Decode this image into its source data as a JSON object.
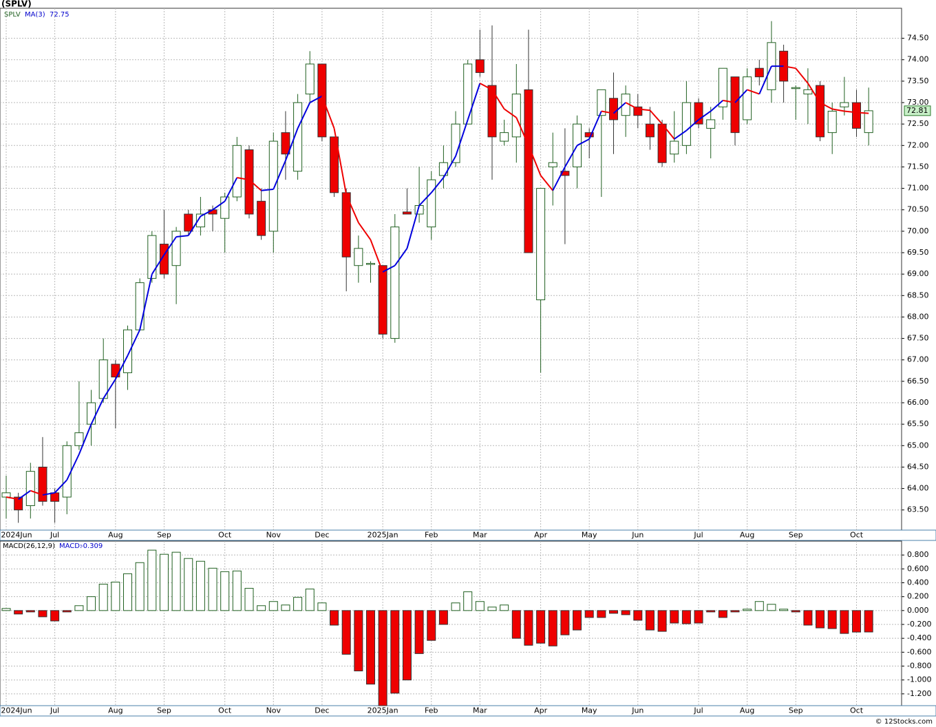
{
  "chart_data": [
    {
      "type": "candlestick",
      "title": "(SPLV)",
      "symbol": "SPLV",
      "categories": [
        "2024Jun",
        null,
        null,
        null,
        "Jul",
        null,
        null,
        null,
        null,
        "Aug",
        null,
        null,
        null,
        "Sep",
        null,
        null,
        null,
        null,
        "Oct",
        null,
        null,
        null,
        "Nov",
        null,
        null,
        null,
        "Dec",
        null,
        null,
        null,
        null,
        "2025Jan",
        null,
        null,
        null,
        "Feb",
        null,
        null,
        null,
        "Mar",
        null,
        null,
        null,
        null,
        "Apr",
        null,
        null,
        null,
        "May",
        null,
        null,
        null,
        "Jun",
        null,
        null,
        null,
        null,
        "Jul",
        null,
        null,
        null,
        "Aug",
        null,
        null,
        null,
        "Sep",
        null,
        null,
        null,
        null,
        "Oct",
        null
      ],
      "open": [
        63.8,
        63.8,
        63.6,
        64.5,
        63.9,
        63.8,
        65.0,
        65.5,
        66.1,
        66.9,
        66.7,
        67.7,
        68.9,
        69.7,
        69.2,
        70.4,
        70.1,
        70.5,
        70.3,
        70.8,
        71.9,
        70.7,
        70.0,
        72.3,
        71.4,
        73.2,
        73.9,
        72.2,
        70.9,
        69.2,
        69.25,
        69.2,
        67.5,
        70.45,
        70.4,
        70.1,
        71.3,
        71.6,
        72.5,
        74.0,
        73.4,
        72.1,
        72.2,
        73.3,
        68.4,
        71.5,
        71.4,
        71.5,
        72.3,
        72.7,
        73.1,
        72.7,
        72.9,
        72.5,
        72.5,
        71.8,
        72.0,
        73.0,
        72.4,
        72.9,
        73.6,
        72.6,
        73.8,
        73.3,
        74.2,
        73.35,
        73.2,
        73.4,
        72.3,
        72.9,
        73.0,
        72.3
      ],
      "high": [
        64.3,
        63.9,
        64.6,
        65.2,
        64.0,
        65.1,
        66.5,
        66.3,
        67.5,
        67.0,
        67.8,
        68.9,
        70.0,
        70.5,
        70.1,
        70.5,
        70.8,
        70.6,
        70.9,
        72.2,
        72.0,
        71.0,
        72.3,
        72.8,
        73.2,
        74.2,
        73.9,
        72.2,
        71.0,
        69.9,
        69.3,
        69.2,
        70.4,
        71.0,
        71.5,
        71.4,
        72.0,
        72.8,
        74.0,
        74.7,
        74.8,
        72.6,
        73.9,
        74.7,
        71.0,
        72.3,
        72.4,
        72.7,
        72.4,
        73.3,
        73.7,
        73.4,
        73.2,
        72.9,
        72.6,
        72.8,
        73.5,
        73.1,
        72.9,
        73.8,
        73.6,
        73.8,
        74.0,
        74.9,
        74.35,
        73.4,
        73.8,
        73.5,
        73.0,
        73.6,
        73.3,
        73.35
      ],
      "low": [
        63.3,
        63.2,
        63.3,
        63.6,
        63.2,
        63.4,
        64.9,
        65.0,
        66.0,
        65.4,
        66.3,
        67.7,
        68.8,
        68.9,
        68.3,
        69.9,
        69.9,
        70.0,
        69.5,
        70.7,
        70.3,
        69.8,
        69.5,
        71.2,
        71.2,
        73.0,
        72.1,
        70.8,
        68.6,
        68.8,
        68.8,
        67.5,
        67.4,
        70.4,
        70.2,
        69.8,
        71.0,
        71.5,
        72.5,
        73.6,
        71.2,
        72.0,
        71.6,
        69.5,
        66.7,
        70.6,
        69.7,
        71.0,
        71.7,
        70.8,
        71.8,
        72.2,
        72.4,
        71.9,
        71.5,
        71.6,
        71.8,
        72.4,
        71.7,
        72.6,
        72.0,
        72.5,
        73.4,
        73.0,
        73.0,
        72.6,
        72.5,
        72.1,
        71.8,
        72.7,
        72.2,
        72.0
      ],
      "close": [
        63.9,
        63.5,
        64.4,
        63.7,
        63.7,
        65.0,
        65.3,
        66.0,
        67.0,
        66.6,
        67.7,
        68.8,
        69.9,
        69.0,
        70.0,
        70.0,
        70.4,
        70.4,
        70.8,
        72.0,
        70.4,
        69.9,
        72.1,
        71.8,
        73.0,
        73.9,
        72.2,
        70.9,
        69.4,
        69.6,
        69.25,
        67.6,
        70.1,
        70.4,
        70.6,
        71.2,
        71.6,
        72.5,
        73.9,
        73.7,
        72.2,
        72.3,
        73.2,
        69.5,
        71.0,
        71.6,
        71.3,
        72.5,
        72.2,
        73.3,
        72.6,
        73.2,
        72.7,
        72.2,
        71.6,
        72.1,
        73.0,
        72.5,
        72.6,
        73.8,
        72.3,
        73.6,
        73.6,
        74.4,
        73.5,
        73.35,
        73.3,
        72.2,
        72.8,
        73.0,
        72.4,
        72.81
      ],
      "up_color": "#1f5f1f",
      "down_color": "#ee0000",
      "ma": {
        "name": "MA(3)",
        "up_color": "#0000dd",
        "down_color": "#ee0000",
        "values": [
          63.8,
          63.75,
          63.95,
          63.85,
          63.9,
          64.2,
          64.8,
          65.5,
          66.1,
          66.55,
          67.1,
          67.7,
          69.0,
          69.45,
          69.87,
          69.9,
          70.35,
          70.5,
          70.7,
          71.25,
          71.2,
          70.95,
          70.98,
          71.65,
          72.4,
          73.0,
          73.15,
          72.4,
          70.85,
          70.2,
          69.8,
          69.05,
          69.2,
          69.6,
          70.6,
          70.9,
          71.25,
          71.75,
          72.6,
          73.45,
          73.3,
          72.85,
          72.65,
          72.0,
          71.3,
          70.95,
          71.5,
          72.0,
          72.15,
          72.8,
          72.75,
          73.0,
          72.85,
          72.82,
          72.5,
          72.15,
          72.35,
          72.6,
          72.8,
          73.05,
          73.0,
          73.3,
          73.2,
          73.85,
          73.85,
          73.8,
          73.45,
          73.0,
          72.85,
          72.8,
          72.77,
          72.75
        ]
      },
      "ylim": [
        63.03,
        75.2
      ],
      "yticks": [
        {
          "value": 63.5,
          "label": "63.50"
        },
        {
          "value": 64,
          "label": "64.00"
        },
        {
          "value": 64.5,
          "label": "64.50"
        },
        {
          "value": 65,
          "label": "65.00"
        },
        {
          "value": 65.5,
          "label": "65.50"
        },
        {
          "value": 66,
          "label": "66.00"
        },
        {
          "value": 66.5,
          "label": "66.50"
        },
        {
          "value": 67,
          "label": "67.00"
        },
        {
          "value": 67.5,
          "label": "67.50"
        },
        {
          "value": 68,
          "label": "68.00"
        },
        {
          "value": 68.5,
          "label": "68.50"
        },
        {
          "value": 69,
          "label": "69.00"
        },
        {
          "value": 69.5,
          "label": "69.50"
        },
        {
          "value": 70,
          "label": "70.00"
        },
        {
          "value": 70.5,
          "label": "70.50"
        },
        {
          "value": 71,
          "label": "71.00"
        },
        {
          "value": 71.5,
          "label": "71.50"
        },
        {
          "value": 72,
          "label": "72.00"
        },
        {
          "value": 72.5,
          "label": "72.50"
        },
        {
          "value": 73,
          "label": "73.00"
        },
        {
          "value": 73.5,
          "label": "73.50"
        },
        {
          "value": 74,
          "label": "74.00"
        },
        {
          "value": 74.5,
          "label": "74.50"
        }
      ],
      "grid": true,
      "last_color": "#c8f0c8"
    },
    {
      "type": "bar",
      "title": "MACD(26,12,9)",
      "value_name": "MACD:",
      "categories": [
        "2024Jun",
        null,
        null,
        null,
        "Jul",
        null,
        null,
        null,
        null,
        "Aug",
        null,
        null,
        null,
        "Sep",
        null,
        null,
        null,
        null,
        "Oct",
        null,
        null,
        null,
        "Nov",
        null,
        null,
        null,
        "Dec",
        null,
        null,
        null,
        null,
        "2025Jan",
        null,
        null,
        null,
        "Feb",
        null,
        null,
        null,
        "Mar",
        null,
        null,
        null,
        null,
        "Apr",
        null,
        null,
        null,
        "May",
        null,
        null,
        null,
        "Jun",
        null,
        null,
        null,
        null,
        "Jul",
        null,
        null,
        null,
        "Aug",
        null,
        null,
        null,
        "Sep",
        null,
        null,
        null,
        null,
        "Oct",
        null
      ],
      "values": [
        0.03,
        -0.05,
        -0.02,
        -0.09,
        -0.15,
        -0.02,
        0.07,
        0.2,
        0.38,
        0.41,
        0.53,
        0.69,
        0.87,
        0.81,
        0.84,
        0.75,
        0.71,
        0.61,
        0.56,
        0.57,
        0.32,
        0.07,
        0.13,
        0.08,
        0.19,
        0.31,
        0.11,
        -0.21,
        -0.63,
        -0.87,
        -1.06,
        -1.37,
        -1.19,
        -1.0,
        -0.62,
        -0.43,
        -0.2,
        0.11,
        0.27,
        0.13,
        0.05,
        0.08,
        -0.4,
        -0.5,
        -0.47,
        -0.51,
        -0.35,
        -0.28,
        -0.1,
        -0.1,
        -0.04,
        -0.06,
        -0.14,
        -0.28,
        -0.3,
        -0.18,
        -0.19,
        -0.18,
        -0.02,
        -0.1,
        -0.02,
        0.02,
        0.13,
        0.09,
        0.02,
        -0.02,
        -0.21,
        -0.25,
        -0.26,
        -0.33,
        -0.31,
        -0.309
      ],
      "up_color": "#1f5f1f",
      "down_color": "#ee0000",
      "ylim": [
        -1.37,
        1.0
      ],
      "yticks": [
        {
          "value": -1.2,
          "label": "-1.200"
        },
        {
          "value": -1.0,
          "label": "-1.000"
        },
        {
          "value": -0.8,
          "label": "-0.800"
        },
        {
          "value": -0.6,
          "label": "-0.600"
        },
        {
          "value": -0.4,
          "label": "-0.400"
        },
        {
          "value": -0.2,
          "label": "-0.200"
        },
        {
          "value": 0,
          "label": "0.000"
        },
        {
          "value": 0.2,
          "label": "0.200"
        },
        {
          "value": 0.4,
          "label": "0.400"
        },
        {
          "value": 0.6,
          "label": "0.600"
        },
        {
          "value": 0.8,
          "label": "0.800"
        }
      ],
      "grid": true
    }
  ],
  "footer": "© 12Stocks.com"
}
